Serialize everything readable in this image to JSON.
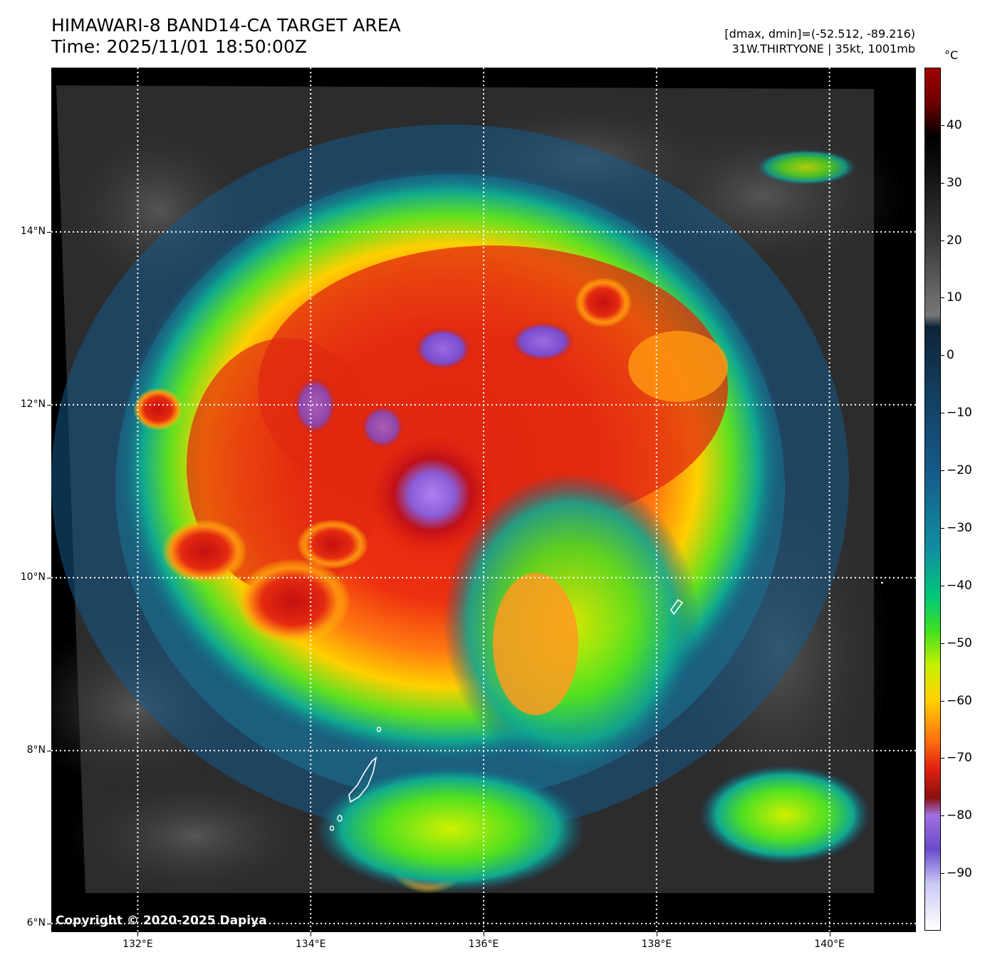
{
  "header": {
    "title": "HIMAWARI-8 BAND14-CA TARGET AREA",
    "time": "Time: 2025/11/01 18:50:00Z",
    "range": "[dmax, dmin]=(-52.512, -89.216)",
    "storm": "31W.THIRTYONE | 35kt, 1001mb"
  },
  "map": {
    "copyright": "Copyright © 2020-2025 Dapiya",
    "lat_ticks": [
      {
        "label": "14°N",
        "value": 14
      },
      {
        "label": "12°N",
        "value": 12
      },
      {
        "label": "10°N",
        "value": 10
      },
      {
        "label": "8°N",
        "value": 8
      },
      {
        "label": "6°N",
        "value": 6
      }
    ],
    "lon_ticks": [
      {
        "label": "132°E",
        "value": 132
      },
      {
        "label": "134°E",
        "value": 134
      },
      {
        "label": "136°E",
        "value": 136
      },
      {
        "label": "138°E",
        "value": 138
      },
      {
        "label": "140°E",
        "value": 140
      }
    ],
    "lat_range": [
      5.9,
      15.9
    ],
    "lon_range": [
      131.0,
      141.0
    ],
    "center_of_storm": {
      "lat": 10.8,
      "lon": 135.2
    }
  },
  "colorbar": {
    "unit": "°C",
    "range": [
      -100,
      50
    ],
    "ticks": [
      {
        "label": "40",
        "value": 40
      },
      {
        "label": "30",
        "value": 30
      },
      {
        "label": "20",
        "value": 20
      },
      {
        "label": "10",
        "value": 10
      },
      {
        "label": "0",
        "value": 0
      },
      {
        "label": "−10",
        "value": -10
      },
      {
        "label": "−20",
        "value": -20
      },
      {
        "label": "−30",
        "value": -30
      },
      {
        "label": "−40",
        "value": -40
      },
      {
        "label": "−50",
        "value": -50
      },
      {
        "label": "−60",
        "value": -60
      },
      {
        "label": "−70",
        "value": -70
      },
      {
        "label": "−80",
        "value": -80
      },
      {
        "label": "−90",
        "value": -90
      }
    ],
    "stops": [
      {
        "value": -100,
        "color": "#ffffff"
      },
      {
        "value": -92,
        "color": "#c9c9f5"
      },
      {
        "value": -86,
        "color": "#6a4ccc"
      },
      {
        "value": -80,
        "color": "#a070e0"
      },
      {
        "value": -77,
        "color": "#8a1010"
      },
      {
        "value": -72,
        "color": "#e02010"
      },
      {
        "value": -67,
        "color": "#ff7010"
      },
      {
        "value": -60,
        "color": "#ffd000"
      },
      {
        "value": -54,
        "color": "#c8f000"
      },
      {
        "value": -48,
        "color": "#40e020"
      },
      {
        "value": -42,
        "color": "#00c878"
      },
      {
        "value": -34,
        "color": "#1090a0"
      },
      {
        "value": -20,
        "color": "#155a8a"
      },
      {
        "value": -5,
        "color": "#123a5a"
      },
      {
        "value": 5,
        "color": "#0e2538"
      },
      {
        "value": 7,
        "color": "#777777"
      },
      {
        "value": 20,
        "color": "#3a3a3a"
      },
      {
        "value": 32,
        "color": "#111111"
      },
      {
        "value": 38,
        "color": "#000000"
      },
      {
        "value": 44,
        "color": "#700000"
      },
      {
        "value": 50,
        "color": "#a00000"
      }
    ]
  }
}
